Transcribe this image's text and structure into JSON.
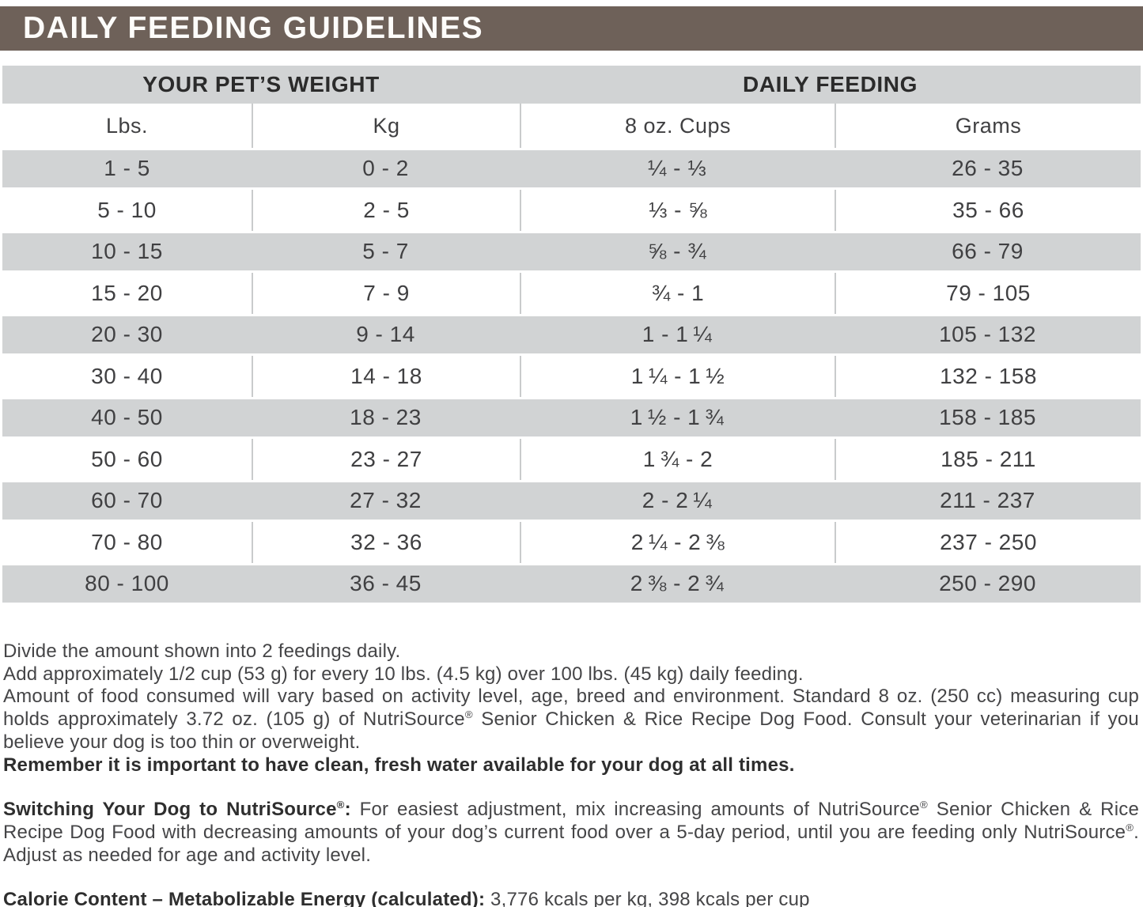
{
  "title": "DAILY FEEDING GUIDELINES",
  "table": {
    "group_headers": [
      "YOUR PET’S WEIGHT",
      "DAILY FEEDING"
    ],
    "columns": [
      "Lbs.",
      "Kg",
      "8 oz. Cups",
      "Grams"
    ],
    "rows": [
      {
        "lbs": "1 - 5",
        "kg": "0 - 2",
        "cups": "¼ - ⅓",
        "grams": "26 - 35"
      },
      {
        "lbs": "5 - 10",
        "kg": "2 - 5",
        "cups": "⅓ - ⅝",
        "grams": "35 - 66"
      },
      {
        "lbs": "10 - 15",
        "kg": "5 - 7",
        "cups": "⅝ - ¾",
        "grams": "66 - 79"
      },
      {
        "lbs": "15 - 20",
        "kg": "7 - 9",
        "cups": "¾ - 1",
        "grams": "79 - 105"
      },
      {
        "lbs": "20 - 30",
        "kg": "9 - 14",
        "cups": "1 - 1 ¼",
        "grams": "105 - 132"
      },
      {
        "lbs": "30 - 40",
        "kg": "14 - 18",
        "cups": "1 ¼ - 1 ½",
        "grams": "132 - 158"
      },
      {
        "lbs": "40 - 50",
        "kg": "18 - 23",
        "cups": "1 ½ - 1 ¾",
        "grams": "158 - 185"
      },
      {
        "lbs": "50 - 60",
        "kg": "23 - 27",
        "cups": "1 ¾ - 2",
        "grams": "185 - 211"
      },
      {
        "lbs": "60 - 70",
        "kg": "27 - 32",
        "cups": "2 - 2 ¼",
        "grams": "211 - 237"
      },
      {
        "lbs": "70 - 80",
        "kg": "32 - 36",
        "cups": "2 ¼ - 2 ⅜",
        "grams": "237 - 250"
      },
      {
        "lbs": "80 - 100",
        "kg": "36 - 45",
        "cups": "2 ⅜ - 2 ¾",
        "grams": "250 - 290"
      }
    ]
  },
  "notes": {
    "line1": "Divide the amount shown into 2 feedings daily.",
    "line2": "Add approximately 1/2 cup (53 g) for every 10 lbs. (4.5 kg) over 100 lbs. (45 kg) daily feeding.",
    "line3": "Amount of food consumed will vary based on activity level, age, breed and environment. Standard 8 oz. (250 cc) measuring cup holds approximately 3.72 oz. (105 g) of NutriSource® Senior Chicken & Rice Recipe Dog Food. Consult your veterinarian if you believe your dog is too thin or overweight.",
    "line4": "Remember it is important to have clean, fresh water available for your dog at all times."
  },
  "switching": {
    "lead": "Switching Your Dog to NutriSource®:",
    "text": " For easiest adjustment, mix increasing amounts of NutriSource® Senior Chicken & Rice Recipe Dog Food with decreasing amounts of your dog’s current food over a 5-day period, until you are feeding only NutriSource®. Adjust as needed for age and activity level."
  },
  "calories": {
    "lead": "Calorie Content – Metabolizable Energy (calculated):",
    "text": " 3,776 kcals per kg, 398 kcals per cup"
  },
  "colors": {
    "header_brown": "#6e6159",
    "row_gray": "#d1d3d4",
    "divider_gray": "#c9cbcc",
    "text_dark": "#404042"
  }
}
